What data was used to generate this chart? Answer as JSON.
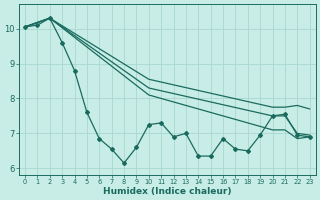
{
  "xlabel": "Humidex (Indice chaleur)",
  "bg_color": "#c8ece6",
  "grid_color": "#a8d8d0",
  "line_color": "#1a6b5e",
  "xlim": [
    -0.5,
    23.5
  ],
  "ylim": [
    5.8,
    10.7
  ],
  "yticks": [
    6,
    7,
    8,
    9,
    10
  ],
  "xticks": [
    0,
    1,
    2,
    3,
    4,
    5,
    6,
    7,
    8,
    9,
    10,
    11,
    12,
    13,
    14,
    15,
    16,
    17,
    18,
    19,
    20,
    21,
    22,
    23
  ],
  "series_wiggly_x": [
    0,
    1,
    2,
    3,
    4,
    5,
    6,
    7,
    8,
    9,
    10,
    11,
    12,
    13,
    14,
    15,
    16,
    17,
    18,
    19,
    20,
    21,
    22,
    23
  ],
  "series_wiggly_y": [
    10.05,
    10.1,
    10.3,
    9.6,
    8.8,
    7.6,
    6.85,
    6.55,
    6.15,
    6.6,
    7.25,
    7.3,
    6.9,
    7.0,
    6.35,
    6.35,
    6.85,
    6.55,
    6.5,
    6.95,
    7.5,
    7.55,
    6.95,
    6.9
  ],
  "series_top_x": [
    0,
    2,
    10,
    20,
    21,
    22,
    23
  ],
  "series_top_y": [
    10.05,
    10.3,
    8.55,
    7.75,
    7.75,
    7.8,
    7.7
  ],
  "series_mid_x": [
    0,
    2,
    10,
    20,
    21,
    22,
    23
  ],
  "series_mid_y": [
    10.05,
    10.3,
    8.3,
    7.5,
    7.5,
    7.0,
    6.95
  ],
  "series_bot_x": [
    0,
    2,
    10,
    20,
    21,
    22,
    23
  ],
  "series_bot_y": [
    10.05,
    10.3,
    8.1,
    7.1,
    7.1,
    6.85,
    6.9
  ]
}
